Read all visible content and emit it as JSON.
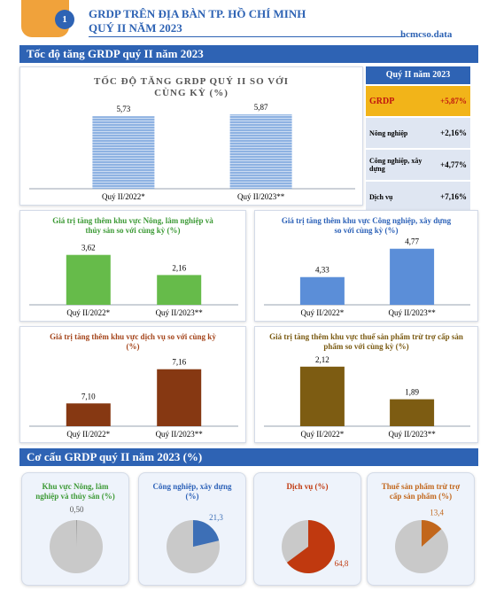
{
  "header": {
    "number": "1",
    "title": "GRDP TRÊN ĐỊA BÀN TP. HỒ CHÍ MINH",
    "subtitle": "QUÝ II NĂM 2023",
    "brand": "hcmcso.data"
  },
  "sections": [
    "Tốc độ tăng GRDP quý II năm 2023",
    "Cơ cấu GRDP quý II năm 2023 (%)"
  ],
  "summary": {
    "header": "Quý II năm 2023",
    "rows": [
      [
        "GRDP",
        "+5,87%"
      ],
      [
        "Nông nghiệp",
        "+2,16%"
      ],
      [
        "Công nghiệp, xây dựng",
        "+4,77%"
      ],
      [
        "Dịch vụ",
        "+7,16%"
      ]
    ]
  },
  "chart_data": [
    {
      "type": "bar",
      "title": "TỐC ĐỘ TĂNG GRDP QUÝ II SO VỚI CÙNG KỲ (%)",
      "categories": [
        "Quý II/2022*",
        "Quý II/2023**"
      ],
      "values": [
        5.73,
        5.87
      ],
      "value_labels": [
        "5,73",
        "5,87"
      ],
      "color": "#8eb2e2",
      "ylim": [
        0,
        7
      ]
    },
    {
      "type": "bar",
      "title": "Giá trị tăng thêm khu vực Nông, lâm nghiệp và thủy sản so với cùng kỳ (%)",
      "categories": [
        "Quý II/2022*",
        "Quý II/2023**"
      ],
      "values": [
        3.62,
        2.16
      ],
      "value_labels": [
        "3,62",
        "2,16"
      ],
      "color": "#66bb4a",
      "title_color": "#3d9a36",
      "ylim": [
        0,
        4.5
      ]
    },
    {
      "type": "bar",
      "title": "Giá trị tăng thêm khu vực Công nghiệp, xây dựng so với cùng kỳ (%)",
      "categories": [
        "Quý II/2022*",
        "Quý II/2023**"
      ],
      "values": [
        4.33,
        4.77
      ],
      "value_labels": [
        "4,33",
        "4,77"
      ],
      "color": "#5b8ed8",
      "title_color": "#2d62b8",
      "ylim": [
        3.9,
        5.0
      ]
    },
    {
      "type": "bar",
      "title": "Giá trị tăng thêm khu vực dịch vụ so với cùng kỳ (%)",
      "categories": [
        "Quý II/2022*",
        "Quý II/2023**"
      ],
      "values": [
        7.1,
        7.16
      ],
      "value_labels": [
        "7,10",
        "7,16"
      ],
      "color": "#863812",
      "title_color": "#a4441a",
      "ylim": [
        7.06,
        7.2
      ]
    },
    {
      "type": "bar",
      "title": "Giá trị tăng thêm khu vực thuế sản phẩm trừ trợ cấp sản phẩm so với cùng kỳ (%)",
      "categories": [
        "Quý II/2022*",
        "Quý II/2023**"
      ],
      "values": [
        2.12,
        1.89
      ],
      "value_labels": [
        "2,12",
        "1,89"
      ],
      "color": "#7d5c12",
      "title_color": "#7a5a12",
      "ylim": [
        1.7,
        2.2
      ]
    },
    {
      "type": "pie",
      "title": "Khu vực Nông, lâm nghiệp và thủy sản (%)",
      "values": [
        0.5
      ],
      "value_labels": [
        "0,50"
      ],
      "color": "#9a9a9a",
      "title_color": "#3d9a36"
    },
    {
      "type": "pie",
      "title": "Công nghiệp, xây dựng (%)",
      "values": [
        21.3
      ],
      "value_labels": [
        "21,3"
      ],
      "color": "#3d6fb6",
      "title_color": "#2d62b8"
    },
    {
      "type": "pie",
      "title": "Dịch vụ (%)",
      "values": [
        64.8
      ],
      "value_labels": [
        "64,8"
      ],
      "color": "#c0390f",
      "title_color": "#c0390f"
    },
    {
      "type": "pie",
      "title": "Thuế sản phẩm trừ trợ cấp sản phẩm (%)",
      "values": [
        13.4
      ],
      "value_labels": [
        "13,4"
      ],
      "color": "#c2671c",
      "title_color": "#c2671c"
    }
  ]
}
